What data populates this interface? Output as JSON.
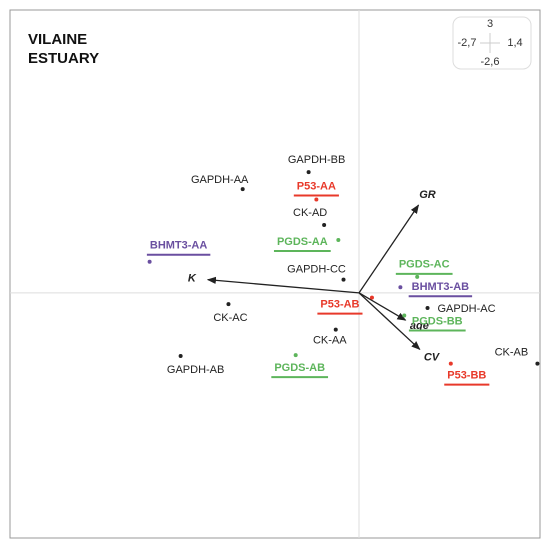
{
  "chart_data": {
    "type": "scatter",
    "title": "VILAINE ESTUARY",
    "xlim": [
      -2.7,
      1.4
    ],
    "ylim": [
      -2.6,
      3
    ],
    "xticks": [
      {
        "value": -2.7,
        "label": "-2,7"
      },
      {
        "value": 1.4,
        "label": "1,4"
      }
    ],
    "yticks": [
      {
        "value": -2.6,
        "label": "-2,6"
      },
      {
        "value": 3,
        "label": "3"
      }
    ],
    "points": [
      {
        "name": "GAPDH-BB",
        "x": -0.39,
        "y": 1.28,
        "color": "#222222"
      },
      {
        "name": "GAPDH-AA",
        "x": -0.9,
        "y": 1.1,
        "color": "#222222"
      },
      {
        "name": "P53-AA",
        "x": -0.33,
        "y": 0.99,
        "color": "#e8392a"
      },
      {
        "name": "CK-AD",
        "x": -0.27,
        "y": 0.72,
        "color": "#222222"
      },
      {
        "name": "PGDS-AA",
        "x": -0.16,
        "y": 0.56,
        "color": "#5db55b"
      },
      {
        "name": "BHMT3-AA",
        "x": -1.62,
        "y": 0.33,
        "color": "#6a4fa0"
      },
      {
        "name": "GAPDH-CC",
        "x": -0.12,
        "y": 0.14,
        "color": "#222222"
      },
      {
        "name": "P53-AB",
        "x": 0.1,
        "y": -0.05,
        "color": "#e8392a"
      },
      {
        "name": "PGDS-AC",
        "x": 0.45,
        "y": 0.17,
        "color": "#5db55b"
      },
      {
        "name": "BHMT3-AB",
        "x": 0.32,
        "y": 0.06,
        "color": "#6a4fa0"
      },
      {
        "name": "GAPDH-AC",
        "x": 0.53,
        "y": -0.16,
        "color": "#222222"
      },
      {
        "name": "PGDS-BB",
        "x": 0.35,
        "y": -0.24,
        "color": "#5db55b"
      },
      {
        "name": "CK-AC",
        "x": -1.01,
        "y": -0.12,
        "color": "#222222"
      },
      {
        "name": "CK-AA",
        "x": -0.18,
        "y": -0.39,
        "color": "#222222"
      },
      {
        "name": "GAPDH-AB",
        "x": -1.38,
        "y": -0.67,
        "color": "#222222"
      },
      {
        "name": "PGDS-AB",
        "x": -0.49,
        "y": -0.66,
        "color": "#5db55b"
      },
      {
        "name": "P53-BB",
        "x": 0.71,
        "y": -0.75,
        "color": "#e8392a"
      },
      {
        "name": "CK-AB",
        "x": 1.38,
        "y": -0.75,
        "color": "#222222"
      }
    ],
    "arrows": [
      {
        "name": "GR",
        "x": 0.46,
        "y": 0.93
      },
      {
        "name": "K",
        "x": -1.17,
        "y": 0.14
      },
      {
        "name": "age",
        "x": 0.36,
        "y": -0.29
      },
      {
        "name": "CV",
        "x": 0.47,
        "y": -0.6
      }
    ]
  }
}
